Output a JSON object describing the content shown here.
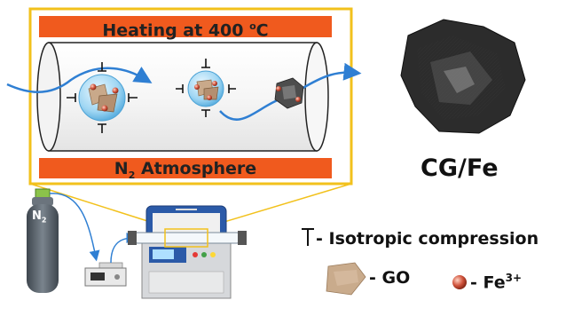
{
  "top_banner": {
    "text": "Heating at 400 ",
    "sup": "o",
    "unit": "C"
  },
  "bottom_banner": {
    "prefix": "N",
    "sub": "2",
    "suffix": " Atmosphere"
  },
  "gas_cylinder": {
    "label": "N",
    "sub": "2"
  },
  "product": {
    "label": "CG/Fe"
  },
  "legend": {
    "compression": "- Isotropic compression",
    "go": "- GO",
    "fe": "- Fe",
    "fe_sup": "3+"
  },
  "colors": {
    "banner": "#f05a1e",
    "frame": "#f2c11c",
    "arrow": "#2f7fd3",
    "cylinder": "#5c6670",
    "fe": "#d0533c"
  }
}
